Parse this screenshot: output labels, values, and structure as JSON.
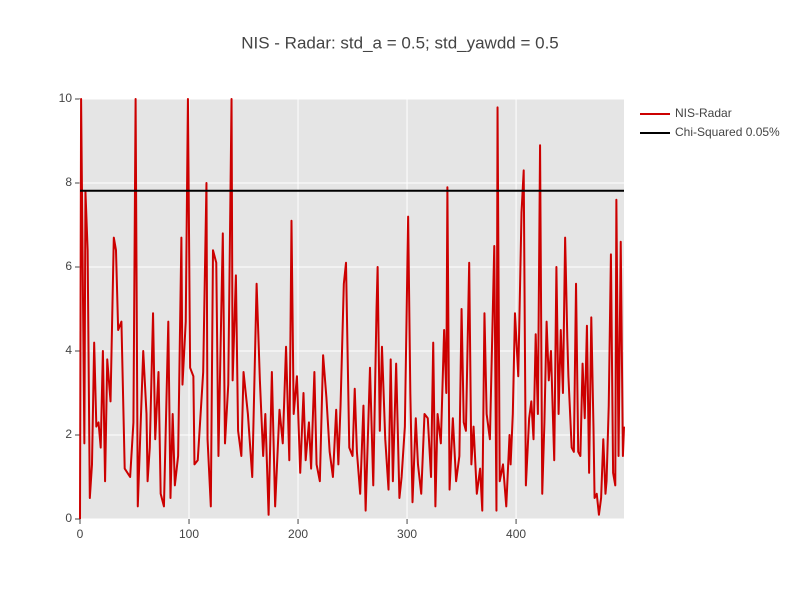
{
  "chart_data": {
    "type": "line",
    "title": "NIS - Radar: std_a = 0.5; std_yawdd = 0.5",
    "xlim": [
      0,
      499
    ],
    "xticks": [
      0,
      100,
      200,
      300,
      400
    ],
    "ylim": [
      0,
      10
    ],
    "yticks": [
      0,
      2,
      4,
      6,
      8,
      10
    ],
    "grid": true,
    "series": [
      {
        "name": "NIS-Radar",
        "color": "#cc0000",
        "x": [
          0,
          1,
          4,
          5,
          7,
          9,
          11,
          13,
          15,
          17,
          19,
          21,
          23,
          25,
          28,
          31,
          33,
          35,
          38,
          41,
          46,
          49,
          51,
          53,
          58,
          61,
          62,
          64,
          67,
          69,
          72,
          74,
          77,
          81,
          83,
          85,
          87,
          90,
          93,
          94,
          97,
          99,
          101,
          104,
          105,
          108,
          113,
          116,
          117,
          120,
          122,
          125,
          127,
          131,
          133,
          136,
          139,
          140,
          143,
          145,
          148,
          150,
          154,
          158,
          162,
          165,
          168,
          170,
          173,
          176,
          179,
          183,
          186,
          189,
          192,
          194,
          196,
          199,
          202,
          205,
          207,
          210,
          212,
          215,
          217,
          220,
          223,
          226,
          229,
          232,
          235,
          237,
          239,
          242,
          244,
          247,
          250,
          252,
          254,
          257,
          260,
          262,
          266,
          269,
          272,
          273,
          275,
          277,
          280,
          283,
          285,
          287,
          290,
          293,
          295,
          298,
          301,
          303,
          305,
          308,
          310,
          313,
          316,
          319,
          322,
          324,
          326,
          328,
          331,
          334,
          336,
          337,
          339,
          342,
          345,
          348,
          350,
          352,
          354,
          357,
          359,
          361,
          364,
          367,
          369,
          371,
          373,
          376,
          380,
          382,
          383,
          385,
          388,
          391,
          394,
          395,
          397,
          399,
          402,
          405,
          407,
          409,
          412,
          414,
          416,
          418,
          420,
          422,
          424,
          426,
          428,
          430,
          432,
          435,
          437,
          439,
          441,
          443,
          445,
          447,
          448,
          451,
          453,
          455,
          457,
          459,
          461,
          463,
          465,
          467,
          469,
          471,
          472,
          474,
          476,
          478,
          480,
          482,
          483,
          485,
          487,
          489,
          491,
          492,
          494,
          496,
          498,
          499
        ],
        "values": [
          0,
          10,
          1.8,
          7.8,
          6.4,
          0.5,
          1.3,
          4.2,
          2.2,
          2.3,
          1.7,
          4,
          0.9,
          3.8,
          2.8,
          6.7,
          6.4,
          4.5,
          4.7,
          1.2,
          1.0,
          2.3,
          10,
          0.3,
          4,
          2.5,
          0.9,
          1.7,
          4.9,
          1.9,
          3.5,
          0.6,
          0.3,
          4.7,
          0.5,
          2.5,
          0.8,
          1.5,
          6.7,
          3.2,
          4.7,
          10,
          3.6,
          3.4,
          1.3,
          1.4,
          3.5,
          8,
          1.9,
          0.3,
          6.4,
          6.1,
          1.5,
          6.8,
          1.8,
          3.2,
          10,
          3.3,
          5.8,
          2.1,
          1.5,
          3.5,
          2.5,
          1,
          5.6,
          3.3,
          1.5,
          2.5,
          0.1,
          3.5,
          0.3,
          2.6,
          1.8,
          4.1,
          1.4,
          7.1,
          2.5,
          3.4,
          1.1,
          3.0,
          1.4,
          2.3,
          1.2,
          3.5,
          1.3,
          0.9,
          3.9,
          2.9,
          1.6,
          1.0,
          2.6,
          1.3,
          2.7,
          5.6,
          6.1,
          1.7,
          1.5,
          3.1,
          1.6,
          0.6,
          2.7,
          0.2,
          3.6,
          0.8,
          5,
          6,
          2.1,
          4.1,
          1.9,
          0.7,
          3.8,
          0.9,
          3.7,
          0.5,
          1.0,
          2.2,
          7.2,
          3,
          0.4,
          2.4,
          1.3,
          0.6,
          2.5,
          2.4,
          1,
          4.2,
          0.3,
          2.5,
          1.8,
          4.5,
          3,
          7.9,
          0.7,
          2.4,
          0.9,
          1.5,
          5,
          2.3,
          2.1,
          6.1,
          1.3,
          2.2,
          0.6,
          1.2,
          0.2,
          4.9,
          2.5,
          1.9,
          6.5,
          0.2,
          9.8,
          0.9,
          1.3,
          0.3,
          2.0,
          1.3,
          2.5,
          4.9,
          3.4,
          7.3,
          8.3,
          0.8,
          2.4,
          2.8,
          1.9,
          4.4,
          2.5,
          8.9,
          0.6,
          2.3,
          4.7,
          3.3,
          4.0,
          1.4,
          6.0,
          2.5,
          4.5,
          3.0,
          6.7,
          4.3,
          3.4,
          1.7,
          1.6,
          5.6,
          1.6,
          1.5,
          3.7,
          2.4,
          4.6,
          1.1,
          4.8,
          2.2,
          0.5,
          0.6,
          0.1,
          0.5,
          1.9,
          0.6,
          0.9,
          2.7,
          6.3,
          1.1,
          0.8,
          7.6,
          1.5,
          6.6,
          1.5,
          2.2
        ]
      },
      {
        "name": "Chi-Squared 0.05%",
        "color": "#000000",
        "x": [
          0,
          499
        ],
        "values": [
          7.815,
          7.815
        ]
      }
    ]
  }
}
